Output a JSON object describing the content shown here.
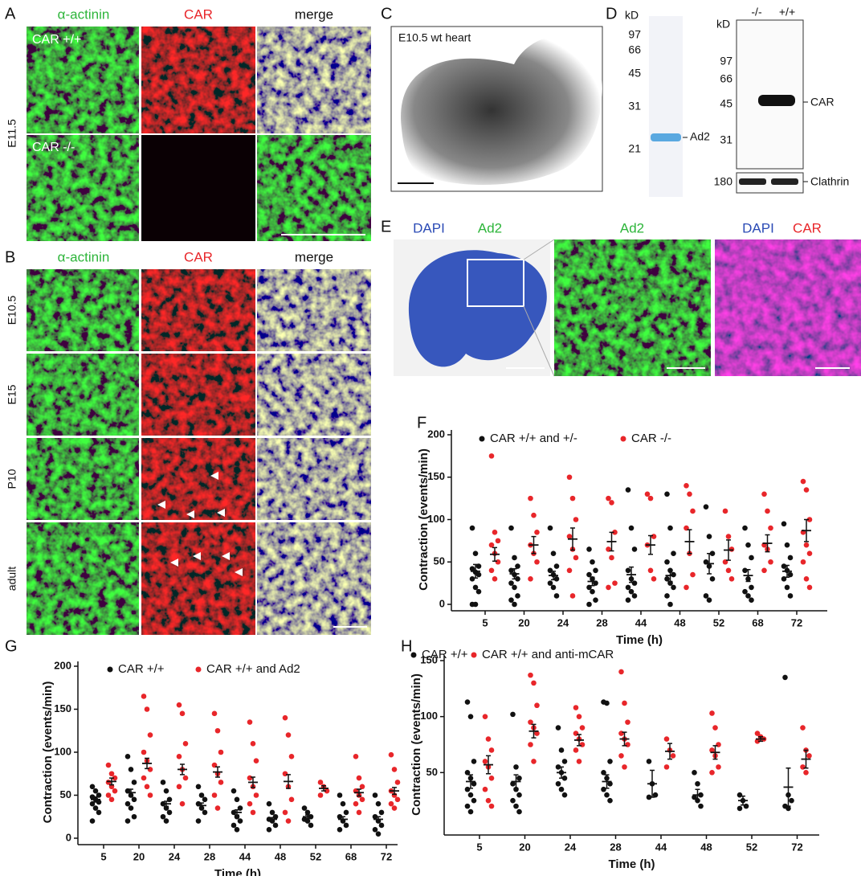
{
  "panels": {
    "A": {
      "label": "A",
      "columns": [
        "α-actinin",
        "CAR",
        "merge"
      ],
      "rows": [
        "CAR +/+",
        "CAR -/-"
      ],
      "stage": "E11.5"
    },
    "B": {
      "label": "B",
      "columns": [
        "α-actinin",
        "CAR",
        "merge"
      ],
      "rows": [
        "E10.5",
        "E15",
        "P10",
        "adult"
      ]
    },
    "C": {
      "label": "C",
      "caption": "E10.5 wt heart"
    },
    "D": {
      "label": "D",
      "gel": {
        "unit": "kD",
        "markers": [
          "97",
          "66",
          "45",
          "31",
          "21"
        ],
        "band": "Ad2"
      },
      "blot": {
        "unit": "kD",
        "lanes": [
          "-/-",
          "+/+"
        ],
        "markers": [
          "97",
          "66",
          "45",
          "31"
        ],
        "band": "CAR",
        "loading_marker": "180",
        "loading": "Clathrin"
      }
    },
    "E": {
      "label": "E",
      "images": [
        [
          "DAPI",
          "Ad2"
        ],
        [
          "Ad2"
        ],
        [
          "DAPI",
          "CAR"
        ]
      ]
    },
    "F": {
      "label": "F"
    },
    "G": {
      "label": "G"
    },
    "H": {
      "label": "H"
    }
  },
  "chart_data": [
    {
      "type": "strip",
      "ylabel": "Contraction (events/min)",
      "xlabel": "Time (h)",
      "categories": [
        "5",
        "20",
        "24",
        "28",
        "44",
        "48",
        "52",
        "68",
        "72"
      ],
      "ylim": [
        0,
        200
      ],
      "yticks": [
        0,
        50,
        100,
        150,
        200
      ],
      "series": [
        {
          "name": "CAR +/+ and +/-",
          "color": "#111111",
          "points": [
            [
              90,
              60,
              45,
              42,
              38,
              35,
              30,
              20,
              15,
              0,
              0
            ],
            [
              90,
              55,
              45,
              40,
              35,
              30,
              25,
              20,
              10,
              5,
              0
            ],
            [
              90,
              60,
              45,
              40,
              35,
              30,
              25,
              20,
              10
            ],
            [
              65,
              50,
              40,
              35,
              30,
              25,
              20,
              15,
              5,
              0
            ],
            [
              135,
              90,
              65,
              40,
              30,
              25,
              20,
              15,
              10,
              5
            ],
            [
              130,
              90,
              60,
              50,
              40,
              35,
              30,
              25,
              20,
              10,
              0
            ],
            [
              115,
              80,
              60,
              50,
              45,
              30,
              10,
              5
            ],
            [
              90,
              70,
              55,
              40,
              30,
              20,
              15,
              10,
              5
            ],
            [
              95,
              70,
              55,
              45,
              40,
              35,
              30,
              20,
              10
            ]
          ],
          "mean": [
            39,
            36,
            34,
            27,
            35,
            34,
            48,
            34,
            39
          ],
          "sem": [
            8,
            6,
            5,
            5,
            9,
            7,
            12,
            7,
            7
          ]
        },
        {
          "name": "CAR -/-",
          "color": "#e8262a",
          "points": [
            [
              175,
              85,
              75,
              70,
              60,
              50,
              40,
              30
            ],
            [
              125,
              105,
              85,
              70,
              60,
              50,
              30
            ],
            [
              150,
              125,
              100,
              80,
              65,
              55,
              40,
              10
            ],
            [
              125,
              120,
              85,
              65,
              55,
              25,
              20
            ],
            [
              130,
              125,
              80,
              70,
              40,
              30
            ],
            [
              140,
              130,
              110,
              90,
              60,
              35,
              20
            ],
            [
              110,
              80,
              65,
              50,
              40,
              30
            ],
            [
              130,
              110,
              90,
              70,
              65,
              50,
              40
            ],
            [
              145,
              135,
              100,
              85,
              70,
              60,
              50,
              30,
              20
            ]
          ],
          "mean": [
            59,
            70,
            77,
            74,
            70,
            74,
            64,
            72,
            87
          ],
          "sem": [
            8,
            10,
            13,
            11,
            11,
            14,
            12,
            10,
            13
          ]
        }
      ]
    },
    {
      "type": "strip",
      "ylabel": "Contraction (events/min)",
      "xlabel": "Time (h)",
      "categories": [
        "5",
        "20",
        "24",
        "28",
        "44",
        "48",
        "52",
        "68",
        "72"
      ],
      "ylim": [
        0,
        200
      ],
      "yticks": [
        0,
        50,
        100,
        150,
        200
      ],
      "series": [
        {
          "name": "CAR +/+",
          "color": "#111111",
          "points": [
            [
              60,
              55,
              50,
              48,
              45,
              42,
              40,
              35,
              30,
              20
            ],
            [
              95,
              80,
              65,
              55,
              50,
              45,
              40,
              35,
              25,
              20
            ],
            [
              65,
              55,
              45,
              40,
              35,
              30,
              25,
              20
            ],
            [
              60,
              50,
              45,
              40,
              35,
              30,
              20
            ],
            [
              55,
              45,
              35,
              30,
              25,
              20,
              15,
              10
            ],
            [
              40,
              30,
              25,
              22,
              20,
              15,
              10
            ],
            [
              35,
              30,
              25,
              22,
              20,
              15
            ],
            [
              50,
              40,
              30,
              25,
              20,
              15,
              10
            ],
            [
              50,
              40,
              30,
              25,
              20,
              15,
              10,
              5
            ]
          ],
          "mean": [
            45,
            53,
            40,
            38,
            30,
            22,
            25,
            22,
            22
          ],
          "sem": [
            3,
            4,
            3,
            3,
            3,
            2,
            2,
            3,
            3
          ]
        },
        {
          "name": "CAR +/+ and Ad2",
          "color": "#e8262a",
          "points": [
            [
              85,
              75,
              70,
              65,
              60,
              55,
              50,
              45
            ],
            [
              165,
              150,
              120,
              100,
              90,
              80,
              70,
              60,
              50
            ],
            [
              155,
              145,
              110,
              95,
              80,
              70,
              60,
              40
            ],
            [
              145,
              125,
              100,
              85,
              75,
              65,
              50,
              35
            ],
            [
              135,
              110,
              90,
              70,
              60,
              50,
              40,
              30
            ],
            [
              140,
              120,
              95,
              75,
              60,
              45,
              30,
              20
            ],
            [
              65,
              60,
              55,
              50
            ],
            [
              95,
              70,
              60,
              55,
              50,
              45,
              40,
              30
            ],
            [
              97,
              80,
              65,
              55,
              50,
              45,
              40,
              35
            ]
          ],
          "mean": [
            66,
            87,
            80,
            77,
            65,
            66,
            58,
            53,
            55
          ],
          "sem": [
            4,
            6,
            6,
            6,
            6,
            8,
            3,
            4,
            4
          ]
        }
      ]
    },
    {
      "type": "strip",
      "ylabel": "Contraction (events/min)",
      "xlabel": "Time (h)",
      "categories": [
        "5",
        "20",
        "24",
        "28",
        "44",
        "48",
        "52",
        "72"
      ],
      "ylim": [
        0,
        150
      ],
      "yticks": [
        50,
        100,
        150
      ],
      "series": [
        {
          "name": "CAR +/+",
          "color": "#111111",
          "points": [
            [
              113,
              100,
              60,
              50,
              45,
              40,
              35,
              30,
              25,
              20,
              15
            ],
            [
              102,
              55,
              45,
              40,
              35,
              30,
              25,
              20,
              15
            ],
            [
              90,
              70,
              60,
              55,
              50,
              45,
              40,
              35,
              30
            ],
            [
              113,
              112,
              60,
              50,
              45,
              40,
              35,
              30,
              25
            ],
            [
              60,
              40,
              30,
              28
            ],
            [
              50,
              40,
              30,
              28,
              25,
              20
            ],
            [
              30,
              25,
              20,
              18
            ],
            [
              135,
              30,
              25,
              20,
              18
            ]
          ],
          "mean": [
            42,
            42,
            50,
            42,
            40,
            30,
            25,
            37
          ],
          "sem": [
            6,
            6,
            5,
            6,
            12,
            5,
            4,
            17
          ]
        },
        {
          "name": "CAR +/+ and anti-mCAR",
          "color": "#e8262a",
          "points": [
            [
              100,
              80,
              70,
              60,
              55,
              45,
              35,
              25,
              20
            ],
            [
              137,
              130,
              110,
              95,
              90,
              85,
              75,
              60
            ],
            [
              108,
              100,
              90,
              85,
              80,
              75,
              70,
              60
            ],
            [
              140,
              112,
              95,
              85,
              80,
              75,
              65,
              55
            ],
            [
              80,
              70,
              65,
              55
            ],
            [
              103,
              90,
              75,
              70,
              65,
              55,
              50
            ],
            [
              85,
              82,
              80,
              78
            ],
            [
              90,
              70,
              65,
              55,
              50
            ]
          ],
          "mean": [
            57,
            87,
            79,
            80,
            69,
            68,
            80,
            62
          ],
          "sem": [
            8,
            6,
            5,
            6,
            7,
            6,
            2,
            8
          ]
        }
      ]
    }
  ]
}
